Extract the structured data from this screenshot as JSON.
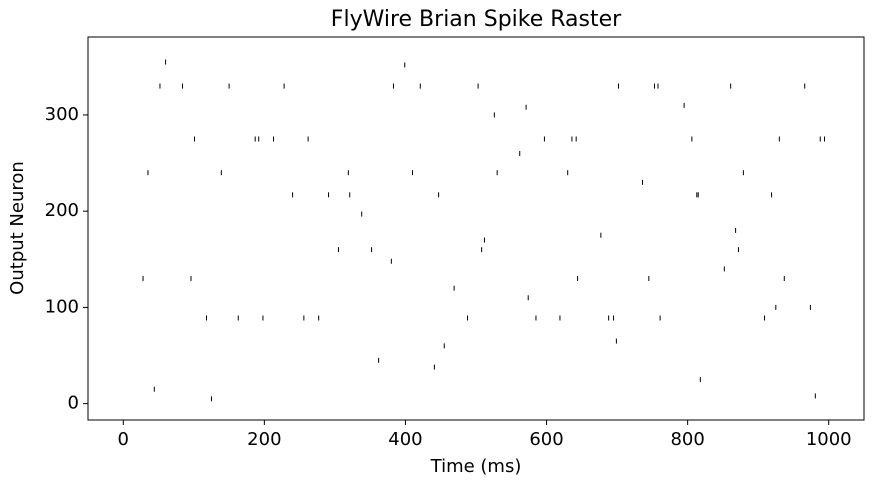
{
  "chart_data": {
    "type": "raster",
    "title": "FlyWire Brian Spike Raster",
    "x_label": "Time (ms)",
    "y_label": "Output Neuron",
    "x": [
      52,
      118,
      187,
      240,
      305,
      362,
      421,
      488,
      530,
      597,
      644,
      702,
      761,
      815,
      872,
      930,
      981,
      35,
      96,
      150,
      213,
      277,
      338,
      399,
      455,
      512,
      571,
      630,
      688,
      745,
      806,
      861,
      919,
      974,
      44,
      101,
      163,
      228,
      291,
      352,
      410,
      469,
      526,
      585,
      642,
      699,
      758,
      813,
      868,
      925,
      988,
      28,
      84,
      139,
      198,
      262,
      321,
      380,
      441,
      503,
      562,
      619,
      677,
      736,
      795,
      852,
      909,
      966,
      60,
      125,
      192,
      256,
      319,
      383,
      447,
      508,
      574,
      636,
      695,
      753,
      818,
      879,
      937,
      994
    ],
    "y": [
      330,
      89,
      275,
      217,
      160,
      45,
      330,
      89,
      240,
      275,
      130,
      330,
      89,
      217,
      160,
      275,
      8,
      240,
      130,
      330,
      275,
      89,
      197,
      352,
      60,
      170,
      308,
      240,
      89,
      130,
      275,
      330,
      217,
      100,
      15,
      275,
      89,
      330,
      217,
      160,
      240,
      120,
      300,
      89,
      275,
      65,
      330,
      217,
      180,
      100,
      275,
      130,
      330,
      240,
      89,
      275,
      217,
      148,
      38,
      330,
      260,
      89,
      175,
      230,
      310,
      140,
      89,
      330,
      355,
      5,
      275,
      89,
      240,
      330,
      217,
      160,
      110,
      275,
      89,
      330,
      25,
      240,
      130,
      275
    ],
    "color": "#000000",
    "xlim": [
      -50,
      1050
    ],
    "ylim": [
      -17,
      381
    ],
    "xticks": [
      0,
      200,
      400,
      600,
      800,
      1000
    ],
    "yticks": [
      0,
      100,
      200,
      300
    ]
  }
}
